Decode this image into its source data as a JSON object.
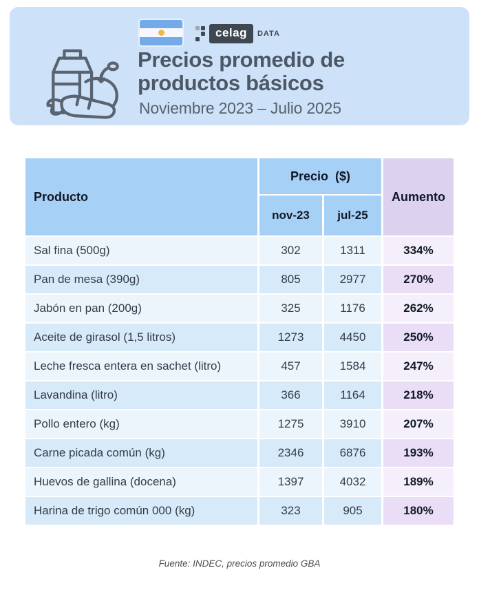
{
  "header": {
    "title_line1": "Precios promedio de",
    "title_line2": "productos básicos",
    "subtitle": "Noviembre 2023 – Julio 2025",
    "logo": {
      "brand": "celag",
      "suffix": "DATA"
    }
  },
  "table": {
    "col_producto": "Producto",
    "col_precio": "Precio  ($)",
    "col_nov": "nov-23",
    "col_jul": "jul-25",
    "col_aumento": "Aumento",
    "rows": [
      {
        "producto": "Sal fina (500g)",
        "nov23": "302",
        "jul25": "1311",
        "aumento": "334%"
      },
      {
        "producto": "Pan de mesa (390g)",
        "nov23": "805",
        "jul25": "2977",
        "aumento": "270%"
      },
      {
        "producto": "Jabón en pan (200g)",
        "nov23": "325",
        "jul25": "1176",
        "aumento": "262%"
      },
      {
        "producto": "Aceite de girasol (1,5 litros)",
        "nov23": "1273",
        "jul25": "4450",
        "aumento": "250%"
      },
      {
        "producto": "Leche fresca entera en sachet (litro)",
        "nov23": "457",
        "jul25": "1584",
        "aumento": "247%"
      },
      {
        "producto": "Lavandina (litro)",
        "nov23": "366",
        "jul25": "1164",
        "aumento": "218%"
      },
      {
        "producto": "Pollo entero (kg)",
        "nov23": "1275",
        "jul25": "3910",
        "aumento": "207%"
      },
      {
        "producto": "Carne picada común (kg)",
        "nov23": "2346",
        "jul25": "6876",
        "aumento": "193%"
      },
      {
        "producto": "Huevos de gallina (docena)",
        "nov23": "1397",
        "jul25": "4032",
        "aumento": "189%"
      },
      {
        "producto": "Harina de trigo común 000 (kg)",
        "nov23": "323",
        "jul25": "905",
        "aumento": "180%"
      }
    ]
  },
  "footer": {
    "source": "Fuente: INDEC, precios promedio GBA"
  },
  "colors": {
    "banner_bg": "#cde2f9",
    "header_blue": "#a6d0f5",
    "header_lavender": "#ddd1f0",
    "row_light": "#ecf4fc",
    "row_blue": "#d7eafa",
    "aumento_light": "#f5effb",
    "aumento_blue": "#eadef6",
    "title_color": "#4d5866",
    "subtitle_color": "#56616e",
    "text_dark": "#333c48",
    "near_black": "#101826",
    "flag_blue": "#75aae9",
    "sun_gold": "#f0b84b",
    "logo_dark": "#3f4750",
    "source_gray": "#4e4e4e",
    "icon_stroke": "#5a6370"
  },
  "chart_data": {
    "type": "table",
    "title": "Precios promedio de productos básicos",
    "subtitle": "Noviembre 2023 – Julio 2025",
    "columns": [
      "Producto",
      "Precio ($) nov-23",
      "Precio ($) jul-25",
      "Aumento"
    ],
    "rows": [
      [
        "Sal fina (500g)",
        302,
        1311,
        "334%"
      ],
      [
        "Pan de mesa (390g)",
        805,
        2977,
        "270%"
      ],
      [
        "Jabón en pan (200g)",
        325,
        1176,
        "262%"
      ],
      [
        "Aceite de girasol (1,5 litros)",
        1273,
        4450,
        "250%"
      ],
      [
        "Leche fresca entera en sachet (litro)",
        457,
        1584,
        "247%"
      ],
      [
        "Lavandina (litro)",
        366,
        1164,
        "218%"
      ],
      [
        "Pollo entero (kg)",
        1275,
        3910,
        "207%"
      ],
      [
        "Carne picada común (kg)",
        2346,
        6876,
        "193%"
      ],
      [
        "Huevos de gallina (docena)",
        1397,
        4032,
        "189%"
      ],
      [
        "Harina de trigo común 000 (kg)",
        323,
        905,
        "180%"
      ]
    ],
    "source": "Fuente: INDEC, precios promedio GBA"
  }
}
